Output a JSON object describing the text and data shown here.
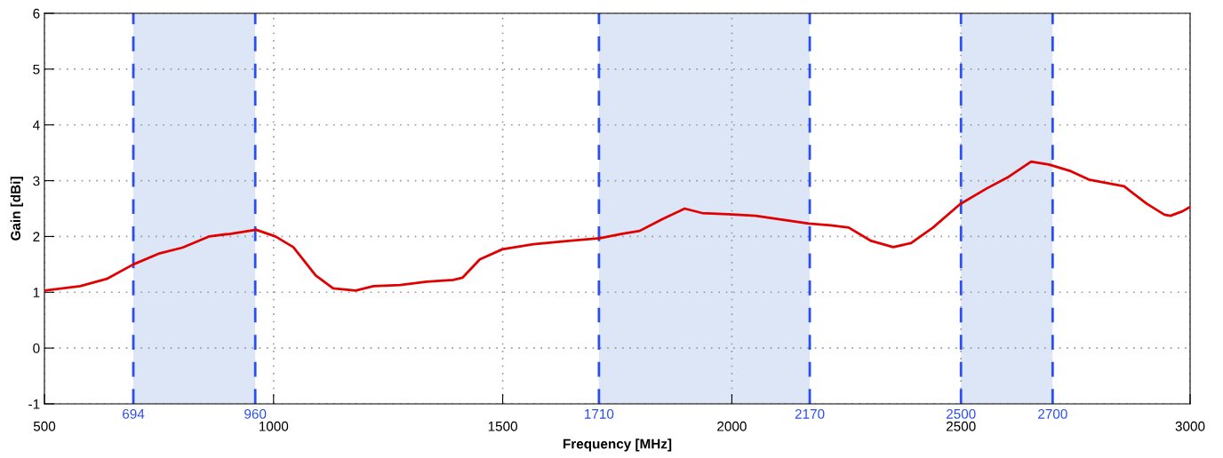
{
  "chart_data": {
    "type": "line",
    "xlabel": "Frequency [MHz]",
    "ylabel": "Gain [dBi]",
    "x": [
      500,
      578,
      636,
      694,
      752,
      801,
      859,
      907,
      962,
      1004,
      1043,
      1092,
      1130,
      1179,
      1218,
      1276,
      1334,
      1392,
      1412,
      1450,
      1499,
      1567,
      1644,
      1712,
      1761,
      1799,
      1848,
      1897,
      1935,
      1993,
      2052,
      2168,
      2216,
      2255,
      2304,
      2352,
      2391,
      2439,
      2498,
      2556,
      2604,
      2653,
      2692,
      2740,
      2779,
      2856,
      2905,
      2944,
      2957,
      2983,
      3000
    ],
    "series": [
      {
        "color": "#e00000",
        "values": [
          1.03,
          1.11,
          1.24,
          1.5,
          1.7,
          1.8,
          2.0,
          2.05,
          2.12,
          2.0,
          1.81,
          1.3,
          1.07,
          1.03,
          1.11,
          1.13,
          1.19,
          1.22,
          1.26,
          1.59,
          1.77,
          1.86,
          1.92,
          1.97,
          2.05,
          2.1,
          2.31,
          2.5,
          2.42,
          2.4,
          2.37,
          2.23,
          2.2,
          2.16,
          1.92,
          1.81,
          1.88,
          2.16,
          2.58,
          2.86,
          3.07,
          3.34,
          3.29,
          3.17,
          3.02,
          2.9,
          2.59,
          2.39,
          2.37,
          2.45,
          2.53
        ]
      }
    ],
    "xlim": [
      500,
      3000
    ],
    "xticks": [
      500,
      1000,
      1500,
      2000,
      2500,
      3000
    ],
    "ylim": [
      -1,
      6
    ],
    "yticks": [
      -1,
      0,
      1,
      2,
      3,
      4,
      5,
      6
    ],
    "grid": true,
    "line_style": "solid",
    "marker": "none",
    "bands": [
      {
        "axis": "x",
        "from": 694,
        "to": 960,
        "color": "#dde6f7"
      },
      {
        "axis": "x",
        "from": 1710,
        "to": 2170,
        "color": "#dde6f7"
      },
      {
        "axis": "x",
        "from": 2500,
        "to": 2700,
        "color": "#dde6f7"
      }
    ],
    "ref_lines": [
      {
        "axis": "x",
        "value": 694,
        "label": "694",
        "color": "#2b4ef0",
        "line_style": "dashed"
      },
      {
        "axis": "x",
        "value": 960,
        "label": "960",
        "color": "#2b4ef0",
        "line_style": "dashed"
      },
      {
        "axis": "x",
        "value": 1710,
        "label": "1710",
        "color": "#2b4ef0",
        "line_style": "dashed"
      },
      {
        "axis": "x",
        "value": 2170,
        "label": "2170",
        "color": "#2b4ef0",
        "line_style": "dashed"
      },
      {
        "axis": "x",
        "value": 2500,
        "label": "2500",
        "color": "#2b4ef0",
        "line_style": "dashed"
      },
      {
        "axis": "x",
        "value": 2700,
        "label": "2700",
        "color": "#2b4ef0",
        "line_style": "dashed"
      }
    ]
  }
}
